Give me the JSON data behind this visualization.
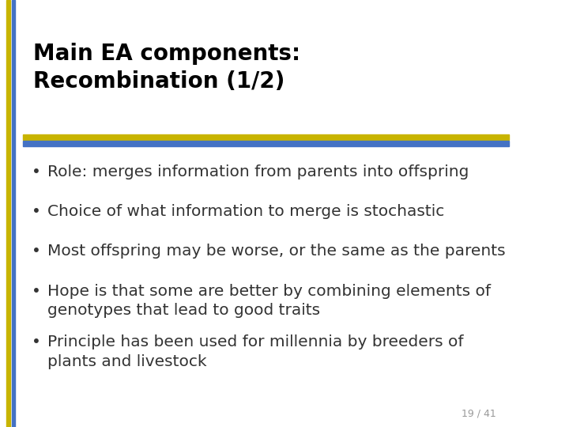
{
  "title_line1": "Main EA components:",
  "title_line2": "Recombination (1/2)",
  "bullets": [
    "Role: merges information from parents into offspring",
    "Choice of what information to merge is stochastic",
    "Most offspring may be worse, or the same as the parents",
    "Hope is that some are better by combining elements of\ngenotypes that lead to good traits",
    "Principle has been used for millennia by breeders of\nplants and livestock"
  ],
  "footer": "19 / 41",
  "bg_color": "#ffffff",
  "title_color": "#000000",
  "text_color": "#333333",
  "line1_color": "#c8b400",
  "line2_color": "#4472c4",
  "title_fontsize": 20,
  "bullet_fontsize": 14.5,
  "footer_fontsize": 9
}
